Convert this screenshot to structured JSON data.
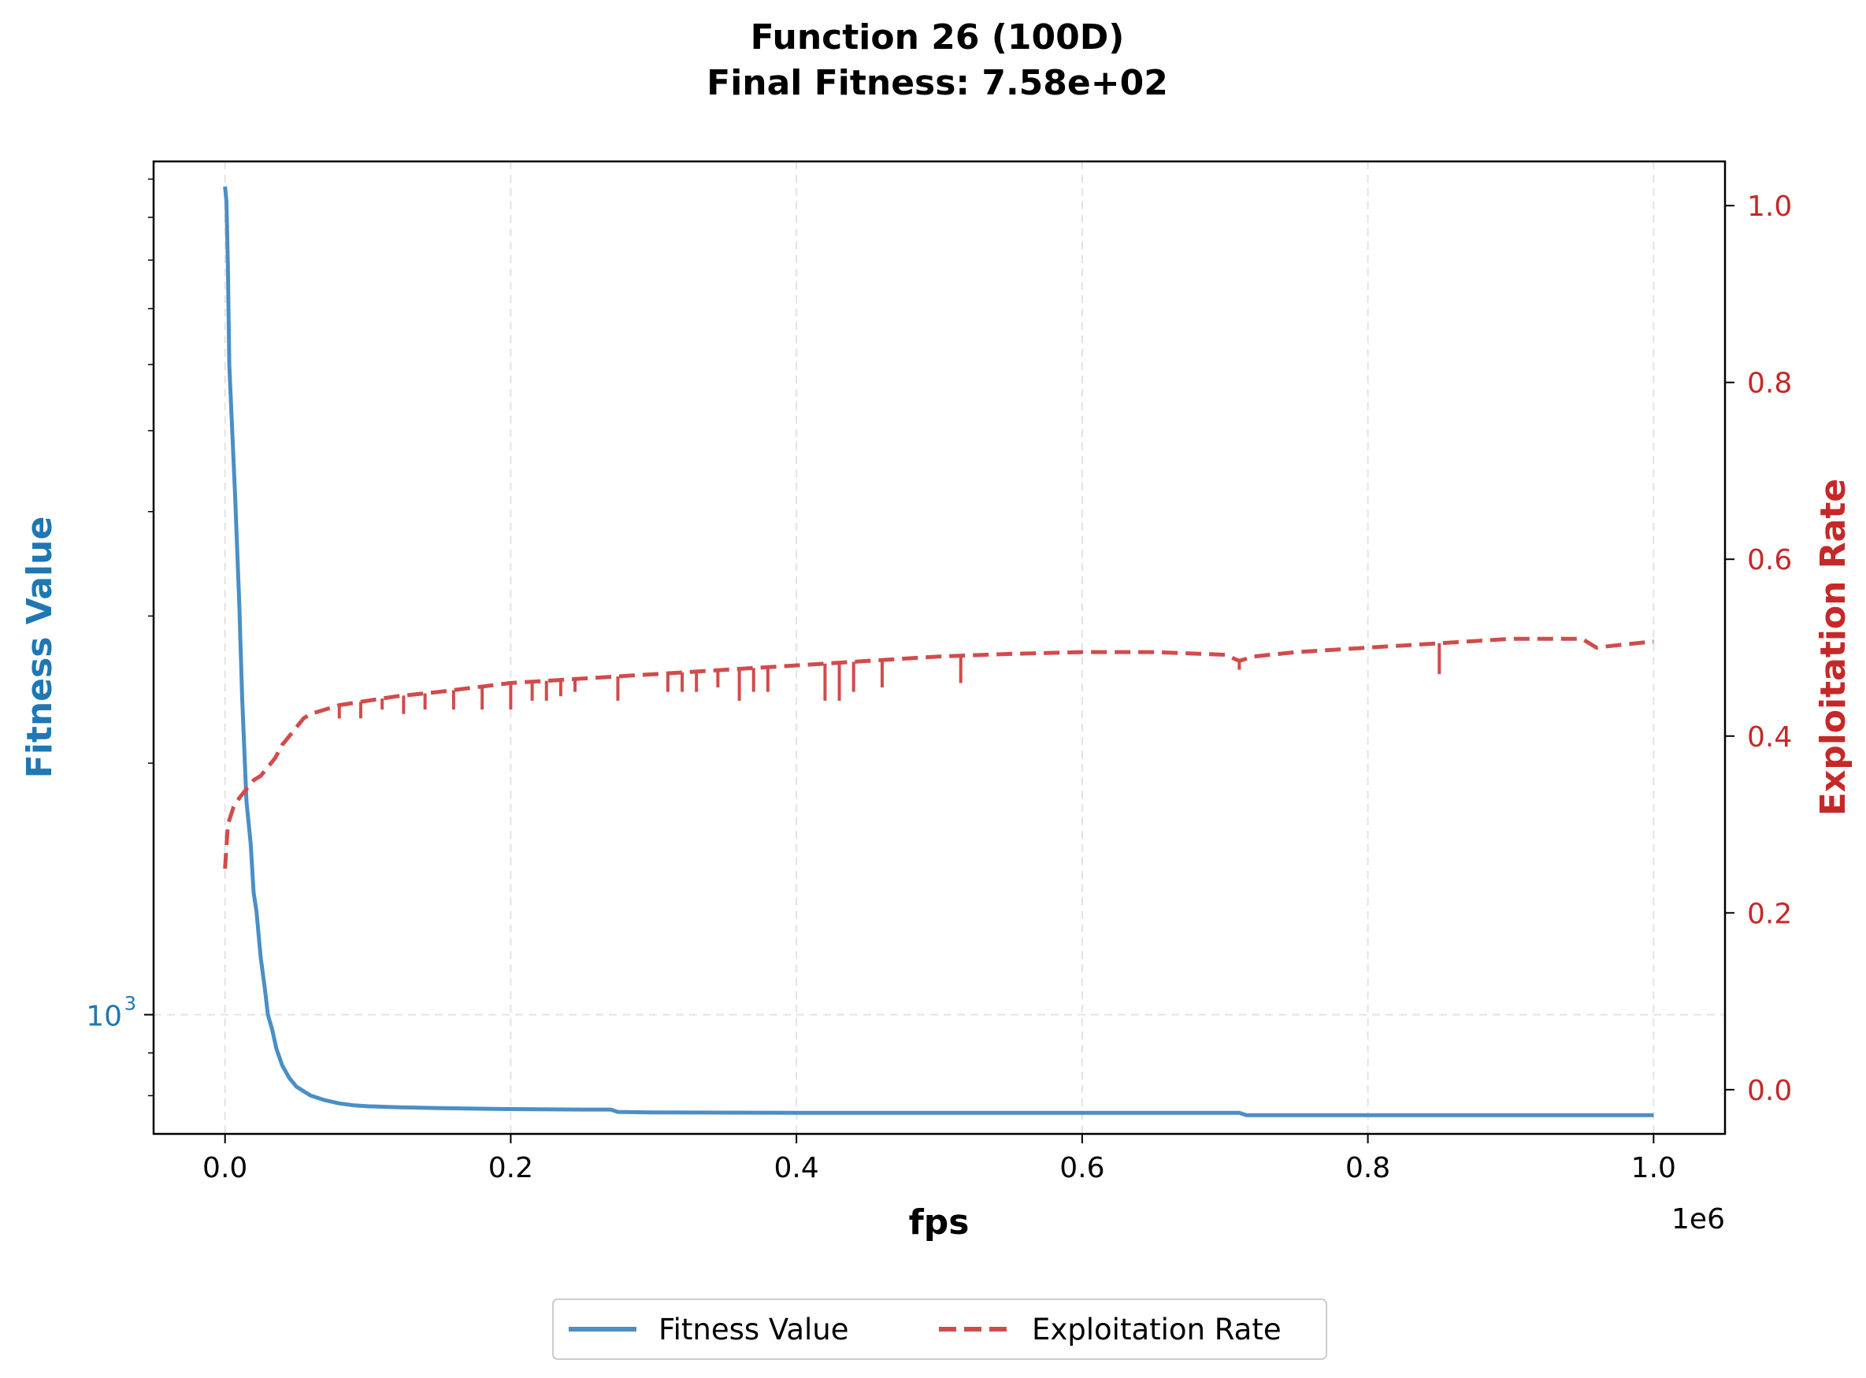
{
  "chart_data": {
    "type": "line",
    "title": "Function 26 (100D)",
    "subtitle": "Final Fitness: 7.58e+02",
    "xlabel": "fps",
    "x_offset_label": "1e6",
    "ylabel_left": "Fitness Value",
    "ylabel_right": "Exploitation Rate",
    "xlim": [
      -50000,
      1050000
    ],
    "x_ticks": [
      0,
      200000,
      400000,
      600000,
      800000,
      1000000
    ],
    "x_tick_labels": [
      "0.0",
      "0.2",
      "0.4",
      "0.6",
      "0.8",
      "1.0"
    ],
    "y_left_scale": "log",
    "y_left_lim": [
      720,
      10500
    ],
    "y_left_major_ticks": [
      1000
    ],
    "y_left_major_tick_labels": [
      "10",
      "3"
    ],
    "y_left_minor_ticks": [
      800,
      900,
      2000,
      3000,
      4000,
      5000,
      6000,
      7000,
      8000,
      9000,
      10000
    ],
    "y_right_lim": [
      -0.05,
      1.05
    ],
    "y_right_ticks": [
      0.0,
      0.2,
      0.4,
      0.6,
      0.8,
      1.0
    ],
    "y_right_tick_labels": [
      "0.0",
      "0.2",
      "0.4",
      "0.6",
      "0.8",
      "1.0"
    ],
    "grid": true,
    "legend_position": "bottom-center",
    "series": [
      {
        "name": "Fitness Value",
        "axis": "left",
        "style": "solid",
        "color": "#1f77b4",
        "x": [
          0,
          1000,
          2000,
          3000,
          5000,
          7000,
          10000,
          12000,
          15000,
          18000,
          20000,
          22000,
          25000,
          28000,
          30000,
          33000,
          36000,
          40000,
          45000,
          50000,
          55000,
          60000,
          70000,
          80000,
          90000,
          100000,
          120000,
          150000,
          200000,
          250000,
          270000,
          275000,
          300000,
          400000,
          500000,
          600000,
          700000,
          710000,
          715000,
          800000,
          900000,
          1000000
        ],
        "y": [
          9800,
          9400,
          7900,
          6000,
          5000,
          4200,
          3100,
          2400,
          1800,
          1600,
          1400,
          1330,
          1170,
          1070,
          1000,
          960,
          910,
          870,
          840,
          820,
          810,
          800,
          790,
          783,
          779,
          777,
          775,
          773,
          771,
          770,
          770,
          765,
          764,
          763,
          763,
          763,
          763,
          763,
          758,
          758,
          758,
          758
        ]
      },
      {
        "name": "Exploitation Rate",
        "axis": "right",
        "style": "dashed",
        "color": "#d62728",
        "x": [
          0,
          2000,
          4000,
          6000,
          10000,
          15000,
          20000,
          25000,
          30000,
          35000,
          40000,
          45000,
          50000,
          55000,
          60000,
          70000,
          80000,
          100000,
          120000,
          150000,
          200000,
          250000,
          300000,
          350000,
          400000,
          450000,
          500000,
          550000,
          600000,
          650000,
          700000,
          710000,
          720000,
          750000,
          800000,
          850000,
          900000,
          930000,
          950000,
          960000,
          970000,
          1000000
        ],
        "y": [
          0.25,
          0.3,
          0.31,
          0.32,
          0.33,
          0.34,
          0.35,
          0.355,
          0.365,
          0.375,
          0.39,
          0.4,
          0.41,
          0.42,
          0.425,
          0.43,
          0.435,
          0.44,
          0.445,
          0.45,
          0.46,
          0.465,
          0.47,
          0.475,
          0.48,
          0.485,
          0.49,
          0.493,
          0.495,
          0.495,
          0.492,
          0.485,
          0.49,
          0.495,
          0.5,
          0.505,
          0.51,
          0.51,
          0.51,
          0.5,
          0.502,
          0.507
        ]
      }
    ],
    "exploitation_dips": [
      {
        "x": 80000,
        "y": 0.42
      },
      {
        "x": 95000,
        "y": 0.42
      },
      {
        "x": 110000,
        "y": 0.43
      },
      {
        "x": 125000,
        "y": 0.425
      },
      {
        "x": 140000,
        "y": 0.43
      },
      {
        "x": 160000,
        "y": 0.43
      },
      {
        "x": 180000,
        "y": 0.43
      },
      {
        "x": 200000,
        "y": 0.43
      },
      {
        "x": 215000,
        "y": 0.44
      },
      {
        "x": 225000,
        "y": 0.44
      },
      {
        "x": 235000,
        "y": 0.445
      },
      {
        "x": 245000,
        "y": 0.45
      },
      {
        "x": 275000,
        "y": 0.44
      },
      {
        "x": 310000,
        "y": 0.45
      },
      {
        "x": 320000,
        "y": 0.45
      },
      {
        "x": 330000,
        "y": 0.45
      },
      {
        "x": 345000,
        "y": 0.455
      },
      {
        "x": 360000,
        "y": 0.44
      },
      {
        "x": 370000,
        "y": 0.45
      },
      {
        "x": 380000,
        "y": 0.45
      },
      {
        "x": 420000,
        "y": 0.44
      },
      {
        "x": 430000,
        "y": 0.44
      },
      {
        "x": 440000,
        "y": 0.45
      },
      {
        "x": 460000,
        "y": 0.455
      },
      {
        "x": 515000,
        "y": 0.46
      },
      {
        "x": 710000,
        "y": 0.475
      },
      {
        "x": 850000,
        "y": 0.47
      }
    ]
  },
  "legend": {
    "items": [
      {
        "label": "Fitness Value",
        "color": "#1f77b4",
        "style": "solid"
      },
      {
        "label": "Exploitation Rate",
        "color": "#d62728",
        "style": "dashed"
      }
    ]
  }
}
